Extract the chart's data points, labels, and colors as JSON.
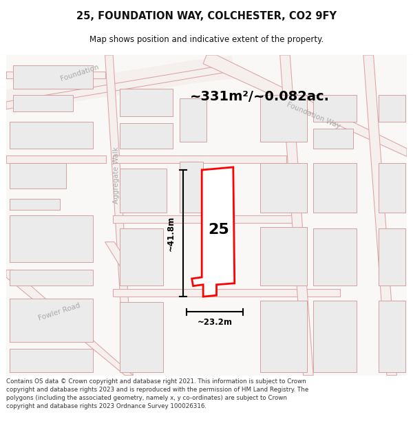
{
  "title": "25, FOUNDATION WAY, COLCHESTER, CO2 9FY",
  "subtitle": "Map shows position and indicative extent of the property.",
  "area_label": "~331m²/~0.082ac.",
  "width_label": "~23.2m",
  "height_label": "~41.8m",
  "number_label": "25",
  "footer": "Contains OS data © Crown copyright and database right 2021. This information is subject to Crown copyright and database rights 2023 and is reproduced with the permission of HM Land Registry. The polygons (including the associated geometry, namely x, y co-ordinates) are subject to Crown copyright and database rights 2023 Ordnance Survey 100026316.",
  "map_bg": "#f9f8f6",
  "road_outline": "#e8b8b8",
  "road_fill": "#f5f0ee",
  "building_outline": "#ddb0b0",
  "building_fill": "#eeebe8",
  "highlight_color": "#ff0000",
  "label_color": "#aaaaaa",
  "title_color": "#111111",
  "footer_color": "#333333",
  "dim_color": "#000000"
}
